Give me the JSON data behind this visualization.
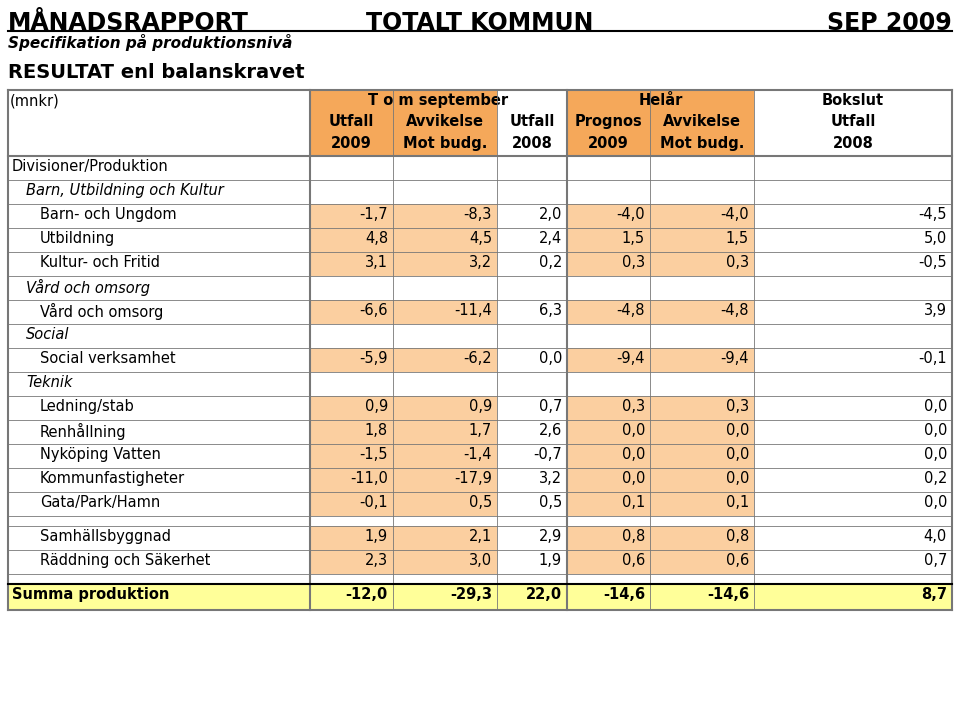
{
  "title_left": "MÅNADSRAPPORT",
  "title_center": "TOTALT KOMMUN",
  "title_right": "SEP 2009",
  "subtitle": "Specifikation på produktionsnivå",
  "section_title": "RESULTAT enl balanskravet",
  "mnkr_label": "(mnkr)",
  "col_group1_label": "T o m september",
  "col_group2_label": "Helår",
  "col_group3_label": "Bokslut",
  "col_headers_row1": [
    "Utfall",
    "Avvikelse",
    "Utfall",
    "Prognos",
    "Avvikelse",
    "Utfall"
  ],
  "col_headers_row2": [
    "2009",
    "Mot budg.",
    "2008",
    "2009",
    "Mot budg.",
    "2008"
  ],
  "rows": [
    {
      "label": "Divisioner/Produktion",
      "indent": 0,
      "bold": false,
      "italic": false,
      "values": null,
      "is_blank": false
    },
    {
      "label": "Barn, Utbildning och Kultur",
      "indent": 1,
      "bold": false,
      "italic": true,
      "values": null,
      "is_blank": false
    },
    {
      "label": "Barn- och Ungdom",
      "indent": 2,
      "bold": false,
      "italic": false,
      "values": [
        "-1,7",
        "-8,3",
        "2,0",
        "-4,0",
        "-4,0",
        "-4,5"
      ]
    },
    {
      "label": "Utbildning",
      "indent": 2,
      "bold": false,
      "italic": false,
      "values": [
        "4,8",
        "4,5",
        "2,4",
        "1,5",
        "1,5",
        "5,0"
      ]
    },
    {
      "label": "Kultur- och Fritid",
      "indent": 2,
      "bold": false,
      "italic": false,
      "values": [
        "3,1",
        "3,2",
        "0,2",
        "0,3",
        "0,3",
        "-0,5"
      ]
    },
    {
      "label": "Vård och omsorg",
      "indent": 1,
      "bold": false,
      "italic": true,
      "values": null,
      "is_blank": false
    },
    {
      "label": "Vård och omsorg",
      "indent": 2,
      "bold": false,
      "italic": false,
      "values": [
        "-6,6",
        "-11,4",
        "6,3",
        "-4,8",
        "-4,8",
        "3,9"
      ]
    },
    {
      "label": "Social",
      "indent": 1,
      "bold": false,
      "italic": true,
      "values": null,
      "is_blank": false
    },
    {
      "label": "Social verksamhet",
      "indent": 2,
      "bold": false,
      "italic": false,
      "values": [
        "-5,9",
        "-6,2",
        "0,0",
        "-9,4",
        "-9,4",
        "-0,1"
      ]
    },
    {
      "label": "Teknik",
      "indent": 1,
      "bold": false,
      "italic": true,
      "values": null,
      "is_blank": false
    },
    {
      "label": "Ledning/stab",
      "indent": 2,
      "bold": false,
      "italic": false,
      "values": [
        "0,9",
        "0,9",
        "0,7",
        "0,3",
        "0,3",
        "0,0"
      ]
    },
    {
      "label": "Renhållning",
      "indent": 2,
      "bold": false,
      "italic": false,
      "values": [
        "1,8",
        "1,7",
        "2,6",
        "0,0",
        "0,0",
        "0,0"
      ]
    },
    {
      "label": "Nyköping Vatten",
      "indent": 2,
      "bold": false,
      "italic": false,
      "values": [
        "-1,5",
        "-1,4",
        "-0,7",
        "0,0",
        "0,0",
        "0,0"
      ]
    },
    {
      "label": "Kommunfastigheter",
      "indent": 2,
      "bold": false,
      "italic": false,
      "values": [
        "-11,0",
        "-17,9",
        "3,2",
        "0,0",
        "0,0",
        "0,2"
      ]
    },
    {
      "label": "Gata/Park/Hamn",
      "indent": 2,
      "bold": false,
      "italic": false,
      "values": [
        "-0,1",
        "0,5",
        "0,5",
        "0,1",
        "0,1",
        "0,0"
      ]
    },
    {
      "label": "",
      "indent": 0,
      "bold": false,
      "italic": false,
      "values": null,
      "is_blank": true
    },
    {
      "label": "Samhällsbyggnad",
      "indent": 2,
      "bold": false,
      "italic": false,
      "values": [
        "1,9",
        "2,1",
        "2,9",
        "0,8",
        "0,8",
        "4,0"
      ]
    },
    {
      "label": "Räddning och Säkerhet",
      "indent": 2,
      "bold": false,
      "italic": false,
      "values": [
        "2,3",
        "3,0",
        "1,9",
        "0,6",
        "0,6",
        "0,7"
      ]
    },
    {
      "label": "",
      "indent": 0,
      "bold": false,
      "italic": false,
      "values": null,
      "is_blank": true
    },
    {
      "label": "Summa produktion",
      "indent": 0,
      "bold": true,
      "italic": false,
      "values": [
        "-12,0",
        "-29,3",
        "22,0",
        "-14,6",
        "-14,6",
        "8,7"
      ],
      "summary": true
    }
  ],
  "bg_color_header": "#F5A85A",
  "bg_color_data": "#FBCFA0",
  "bg_color_summary": "#FFFF99",
  "bg_color_white": "#FFFFFF",
  "text_color": "#000000",
  "border_color": "#777777",
  "title_fontsize": 17,
  "subtitle_fontsize": 11,
  "section_fontsize": 14,
  "data_fontsize": 10.5
}
